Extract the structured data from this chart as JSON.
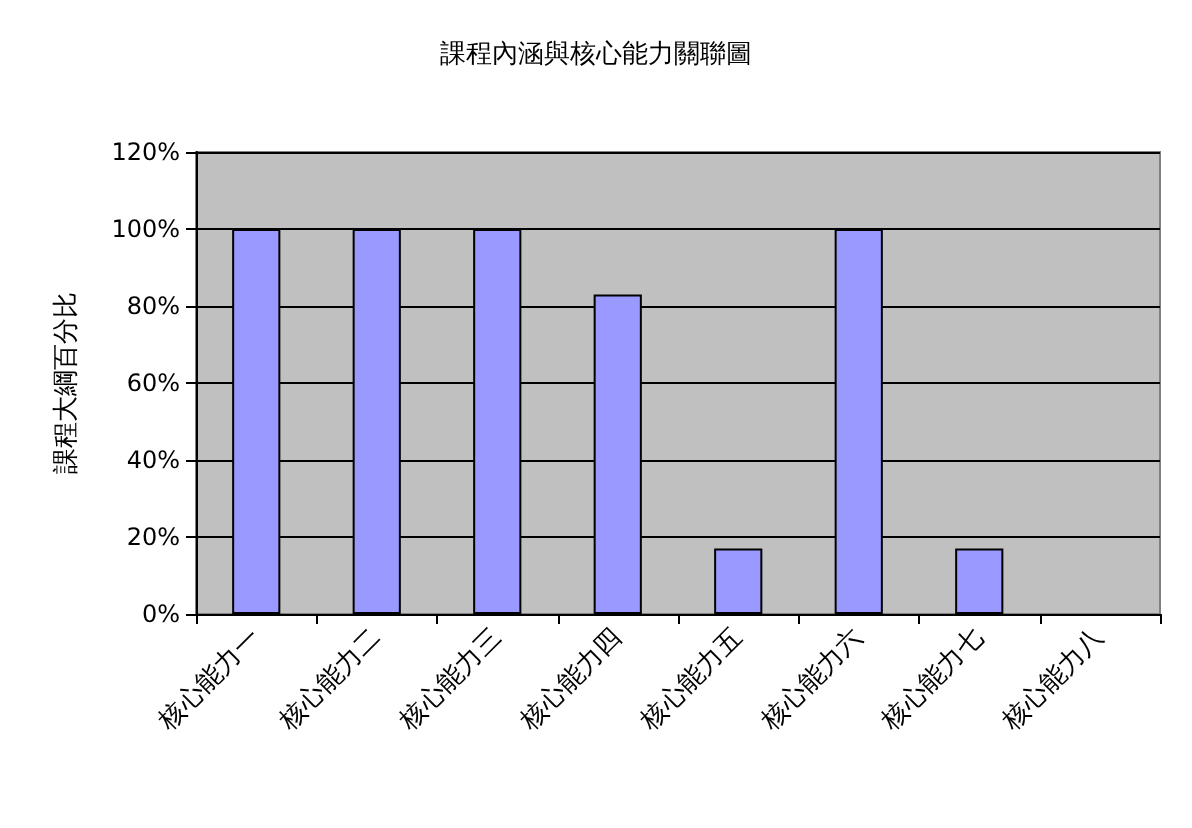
{
  "chart_data": {
    "type": "bar",
    "title": "課程內涵與核心能力關聯圖",
    "ylabel": "課程大綱百分比",
    "categories": [
      "核心能力一",
      "核心能力二",
      "核心能力三",
      "核心能力四",
      "核心能力五",
      "核心能力六",
      "核心能力七",
      "核心能力八"
    ],
    "values": [
      100,
      100,
      100,
      83,
      17,
      100,
      17,
      0
    ],
    "color": "#9999ff",
    "ylim": [
      0,
      120
    ],
    "yticks": [
      {
        "value": 0,
        "label": "0%"
      },
      {
        "value": 20,
        "label": "20%"
      },
      {
        "value": 40,
        "label": "40%"
      },
      {
        "value": 60,
        "label": "60%"
      },
      {
        "value": 80,
        "label": "80%"
      },
      {
        "value": 100,
        "label": "100%"
      },
      {
        "value": 120,
        "label": "120%"
      }
    ],
    "grid": "y"
  }
}
